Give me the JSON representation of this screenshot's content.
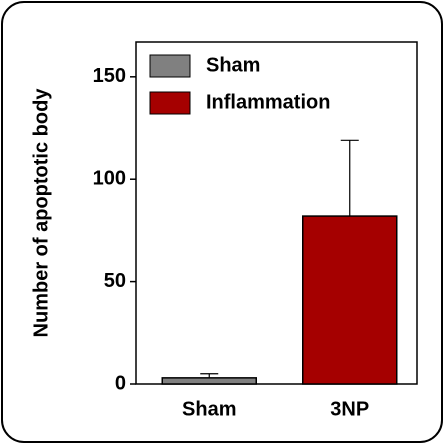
{
  "chart_data": {
    "type": "bar",
    "y_label": "Number of apoptotic body",
    "categories": [
      "Sham",
      "3NP"
    ],
    "series": [
      {
        "name": "Sham",
        "color": "#808080",
        "values": [
          3,
          null
        ],
        "errors": [
          2,
          null
        ]
      },
      {
        "name": "Inflammation",
        "color": "#a50000",
        "values": [
          null,
          82
        ],
        "errors": [
          null,
          37
        ]
      }
    ],
    "ylim": [
      0,
      167
    ],
    "yticks": [
      0,
      50,
      100,
      150
    ],
    "legend": "upper left"
  }
}
